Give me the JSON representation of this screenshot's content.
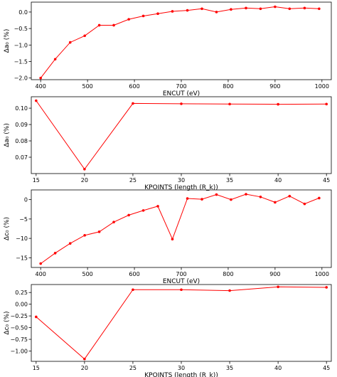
{
  "figure": {
    "background": "#ffffff",
    "series_color": "#ff0000"
  },
  "chart_data": [
    {
      "type": "line",
      "xlabel": "ENCUT (eV)",
      "ylabel": "Δa₀ (%)",
      "xlim": [
        380,
        1020
      ],
      "ylim": [
        -2.05,
        0.3
      ],
      "xticks": [
        400,
        500,
        600,
        700,
        800,
        900,
        1000
      ],
      "yticks": [
        -2.0,
        -1.5,
        -1.0,
        -0.5,
        0.0
      ],
      "yticklabels": [
        "−2.0",
        "−1.5",
        "−1.0",
        "−0.5",
        "0.0"
      ],
      "x": [
        400,
        431,
        463,
        494,
        525,
        556,
        588,
        619,
        650,
        681,
        713,
        744,
        775,
        806,
        838,
        869,
        900,
        931,
        963,
        994
      ],
      "values": [
        -2.0,
        -1.43,
        -0.92,
        -0.72,
        -0.4,
        -0.4,
        -0.22,
        -0.12,
        -0.05,
        0.02,
        0.05,
        0.1,
        0.0,
        0.08,
        0.12,
        0.1,
        0.16,
        0.1,
        0.12,
        0.1
      ]
    },
    {
      "type": "line",
      "xlabel": "KPOINTS (length (R_k))",
      "ylabel": "Δa₀ (%)",
      "xlim": [
        14.5,
        45.5
      ],
      "ylim": [
        0.06,
        0.107
      ],
      "xticks": [
        15,
        20,
        25,
        30,
        35,
        40,
        45
      ],
      "yticks": [
        0.07,
        0.08,
        0.09,
        0.1
      ],
      "yticklabels": [
        "0.07",
        "0.08",
        "0.09",
        "0.10"
      ],
      "x": [
        15,
        20,
        25,
        30,
        35,
        40,
        45
      ],
      "values": [
        0.1046,
        0.0627,
        0.1029,
        0.1027,
        0.1025,
        0.1024,
        0.1025
      ]
    },
    {
      "type": "line",
      "xlabel": "ENCUT (eV)",
      "ylabel": "Δc₀ (%)",
      "xlim": [
        380,
        1020
      ],
      "ylim": [
        -17.5,
        2.5
      ],
      "xticks": [
        400,
        500,
        600,
        700,
        800,
        900,
        1000
      ],
      "yticks": [
        -15,
        -10,
        -5,
        0
      ],
      "yticklabels": [
        "−15",
        "−10",
        "−5",
        "0"
      ],
      "x": [
        400,
        431,
        463,
        494,
        525,
        556,
        588,
        619,
        650,
        681,
        713,
        744,
        775,
        806,
        838,
        869,
        900,
        931,
        963,
        994
      ],
      "values": [
        -16.5,
        -13.8,
        -11.3,
        -9.2,
        -8.3,
        -5.8,
        -4.0,
        -2.8,
        -1.7,
        -10.2,
        0.3,
        0.1,
        1.3,
        0.0,
        1.4,
        0.7,
        -0.7,
        0.9,
        -1.1,
        0.4
      ]
    },
    {
      "type": "line",
      "xlabel": "KPOINTS (length (R_k))",
      "ylabel": "Δc₀ (%)",
      "xlim": [
        14.5,
        45.5
      ],
      "ylim": [
        -1.22,
        0.42
      ],
      "xticks": [
        15,
        20,
        25,
        30,
        35,
        40,
        45
      ],
      "yticks": [
        -1.0,
        -0.75,
        -0.5,
        -0.25,
        0.0,
        0.25
      ],
      "yticklabels": [
        "−1.00",
        "−0.75",
        "−0.50",
        "−0.25",
        "0.00",
        "0.25"
      ],
      "x": [
        15,
        20,
        25,
        30,
        35,
        40,
        45
      ],
      "values": [
        -0.27,
        -1.17,
        0.31,
        0.31,
        0.29,
        0.37,
        0.36
      ]
    }
  ]
}
